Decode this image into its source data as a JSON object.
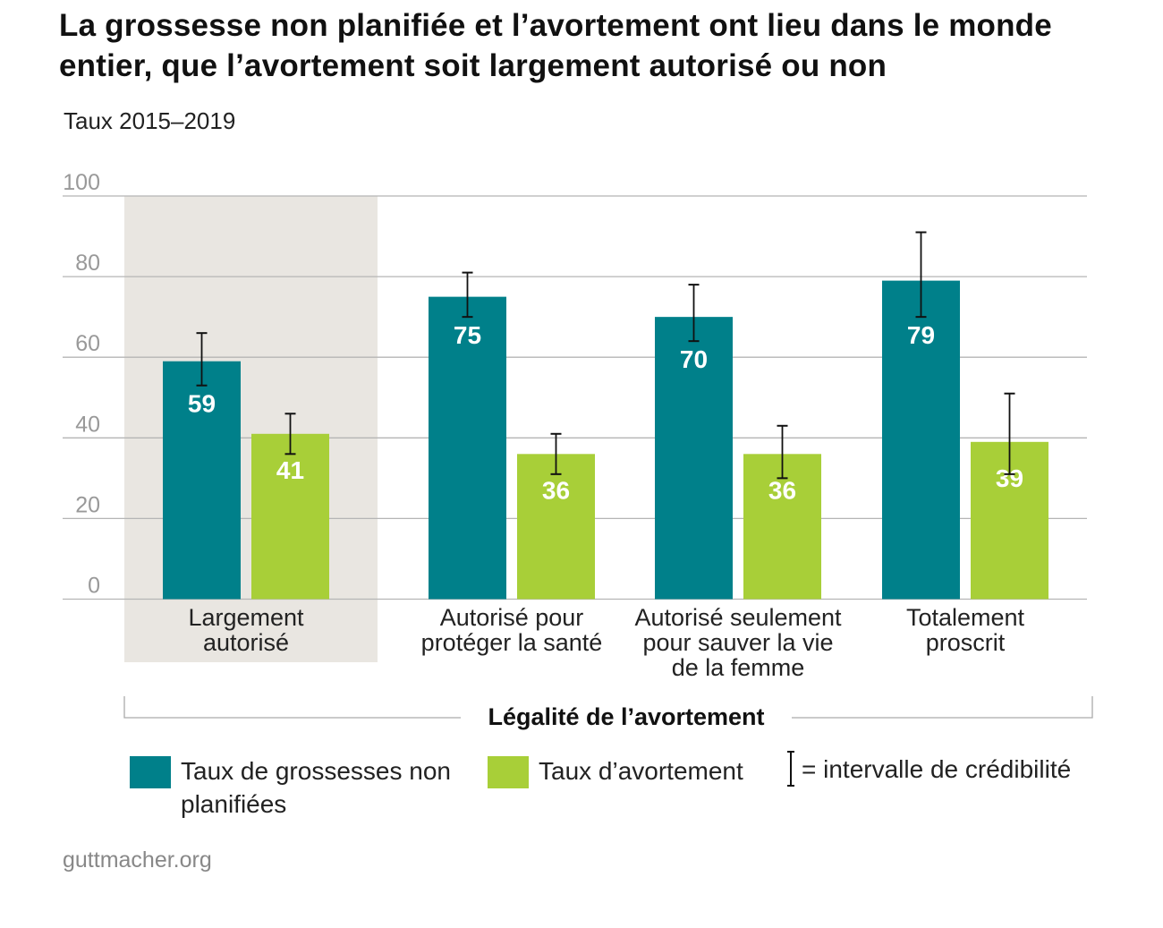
{
  "title": "La grossesse non planifiée et l’avortement ont lieu dans le monde entier, que l’avortement soit largement autorisé ou non",
  "subtitle": "Taux 2015–2019",
  "source": "guttmacher.org",
  "colors": {
    "unplanned": "#00808a",
    "abortion": "#a8cf38",
    "highlight_bg": "#e9e6e1",
    "grid": "#b5b5b5"
  },
  "legend": {
    "unplanned": "Taux de grossesses non planifiées",
    "abortion": "Taux d’avortement",
    "interval": "= intervalle de crédibilité"
  },
  "chart_data": {
    "type": "bar",
    "title": "La grossesse non planifiée et l’avortement ont lieu dans le monde entier, que l’avortement soit largement autorisé ou non",
    "subtitle": "Taux 2015–2019",
    "xlabel": "Légalité de l’avortement",
    "ylabel": "",
    "ylim": [
      0,
      100
    ],
    "yticks": [
      0,
      20,
      40,
      60,
      80,
      100
    ],
    "grid": true,
    "legend_position": "bottom",
    "highlighted_category": "Largement autorisé",
    "categories": [
      [
        "Largement",
        "autorisé"
      ],
      [
        "Autorisé pour",
        "protéger la santé"
      ],
      [
        "Autorisé seulement",
        "pour sauver la vie",
        "de la femme"
      ],
      [
        "Totalement",
        "proscrit"
      ]
    ],
    "series": [
      {
        "name": "Taux de grossesses non planifiées",
        "values": [
          59,
          75,
          70,
          79
        ],
        "intervals": [
          [
            53,
            66
          ],
          [
            70,
            81
          ],
          [
            64,
            78
          ],
          [
            70,
            91
          ]
        ]
      },
      {
        "name": "Taux d’avortement",
        "values": [
          41,
          36,
          36,
          39
        ],
        "intervals": [
          [
            36,
            46
          ],
          [
            31,
            41
          ],
          [
            30,
            43
          ],
          [
            31,
            51
          ]
        ]
      }
    ]
  }
}
